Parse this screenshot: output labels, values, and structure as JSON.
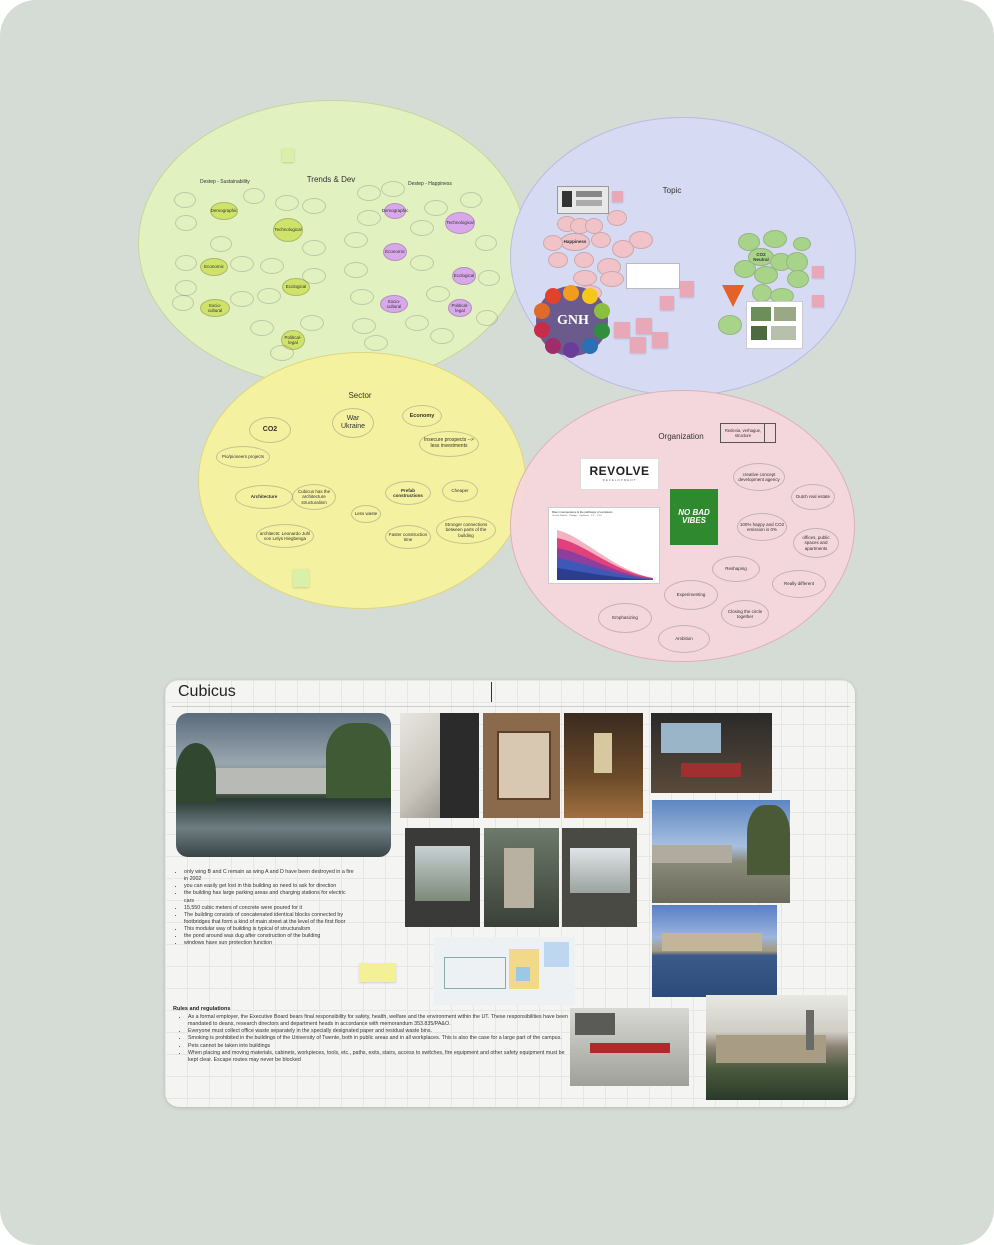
{
  "trends": {
    "title": "Trends & Dev",
    "left_sub": "Destep - Sustainability",
    "right_sub": "Destep - Happiness",
    "nodes_left": [
      "Technological",
      "Demographic",
      "Economic",
      "Ecological",
      "Socio-cultural",
      "Political-legal"
    ],
    "nodes_right": [
      "Demographic",
      "Technological",
      "Economic",
      "Ecological",
      "Socio-cultural",
      "Political-legal"
    ]
  },
  "topic": {
    "title": "Topic",
    "happiness": "Happiness",
    "gnh": "GNH",
    "co2_neutral": "CO2 Neutral",
    "ring_nodes": [
      "Accountability",
      "Security",
      "Family",
      "Sense of community",
      "Entertainment",
      "Work",
      "Social environment",
      "Relationships",
      "Status",
      "Work environment"
    ]
  },
  "sector": {
    "title": "Sector",
    "co2": "CO2",
    "war": "War Ukraine",
    "economy": "Economy",
    "insecure": "Insecure prospects --> less investments",
    "pioneer": "Pio/pioneers projects",
    "architecture": "Architecture",
    "cubicus": "Cubicus has the architecture structuralism",
    "architects": "architects: Leonardo Juhl von Lelys Hiegbenga",
    "prefab": "Prefab constructions",
    "cheaper": "Cheaper",
    "lessmobile": "Less waste",
    "faster": "Faster construction time",
    "stronger": "Stronger connections between parts of the building"
  },
  "organization": {
    "title": "Organization",
    "label_box": "Redevia, verhague, structure",
    "revolve": "REVOLVE",
    "revolve_sub": "DEVELOPMENT",
    "nobadvibes": "NO BAD VIBES",
    "bubbles": {
      "creative": "creative concept development agency",
      "dutch": "Dutch real estate",
      "happy": "100% happy and CO2 emission is 0%",
      "offices": "offices, public spaces and apartments",
      "reshaping": "Reshaping",
      "really": "Really different",
      "experimenting": "Experimenting",
      "closing": "Closing the circle together",
      "emphasizing": "Emphasizing",
      "ambition": "Ambition"
    },
    "chart": {
      "title": "Rise in temperature & the pathways of emissions",
      "legend": [
        "Current Policies",
        "Pledges",
        "Optimistic",
        "2°C",
        "1.5°C"
      ]
    }
  },
  "cubicus": {
    "title": "Cubicus",
    "bullets": [
      "only wing B and C remain as wing A and D have been destroyed in a fire in 2002",
      "you can easily get lost in this building so need to ask for direction",
      "the building has large parking areas and charging stations for electric cars",
      "15,550 cubic meters of concrete were poured for it",
      "The building consists of concatenated identical blocks connected by footbridges that form a kind of main street at the level of the first floor",
      "This modular way of building is typical of structuralism",
      "the pond around was dug after construction of the building",
      "windows have sun protection function"
    ],
    "rules_title": "Rules and regulations",
    "rules": [
      "As a formal employer, the Executive Board bears final responsibility for safety, health, welfare and the environment within the UT. These responsibilities have been mandated to deans, research directors and department heads in accordance with memorandum 353.835/PA&O.",
      "Everyone must collect office waste separately in the specially designated paper and residual waste bins.",
      "Smoking is prohibited in the buildings of the University of Twente, both in public areas and in all workplaces. This is also the case for a large part of the campus.",
      "Pets cannot be taken into buildings",
      "When placing and moving materials, cabinets, workpieces, tools, etc., paths, exits, stairs, access to switches, fire equipment and other safety equipment must be kept clear. Escape routes may never be blocked"
    ]
  },
  "colors": {
    "board": "#d5dcd6",
    "green": "#e3f2be",
    "purple": "#d6d9f4",
    "yellow": "#f6f29c",
    "pink": "#f6d6dc"
  }
}
